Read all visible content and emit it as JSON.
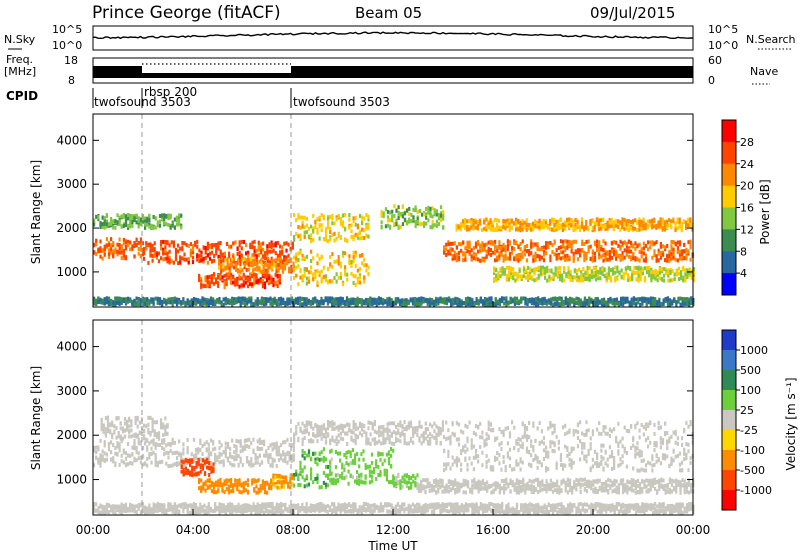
{
  "header": {
    "station": "Prince George (fitACF)",
    "beam": "Beam 05",
    "date": "09/Jul/2015"
  },
  "strips": {
    "nsky_label": "N.Sky",
    "nsky_ticks": [
      "10^5",
      "10^0"
    ],
    "nsearch_label": "N.Search",
    "nsearch_ticks": [
      "10^5",
      "10^0"
    ],
    "freq_label_1": "Freq.",
    "freq_label_2": "[MHz]",
    "freq_ticks": [
      "18",
      "8"
    ],
    "nave_label": "Nave",
    "nave_ticks": [
      "60",
      "0"
    ],
    "cpid_label": "CPID",
    "cpid_entries": [
      "twofsound 3503",
      "rbsp 200",
      "twofsound 3503"
    ],
    "cpid_times": [
      0.0,
      2.0,
      8.0
    ]
  },
  "colorbars": {
    "power": {
      "title": "Power [dB]",
      "labels": [
        "28",
        "24",
        "20",
        "16",
        "12",
        "8",
        "4"
      ],
      "colors": [
        "#ff0000",
        "#ff4400",
        "#ff8800",
        "#ffcc00",
        "#80c840",
        "#3c8c50",
        "#2868a0",
        "#0000ff"
      ]
    },
    "velocity": {
      "title": "Velocity [m s⁻¹]",
      "labels": [
        "1000",
        "500",
        "100",
        "25",
        "-25",
        "-100",
        "-500",
        "-1000"
      ],
      "colors": [
        "#1e3cc8",
        "#3c78c8",
        "#2e8b57",
        "#6cd03c",
        "#c8c8c0",
        "#ffd700",
        "#ff8c00",
        "#ff4500",
        "#ff0000"
      ]
    }
  },
  "chart_data": [
    {
      "type": "heatmap",
      "ylabel": "Slant Range [km]",
      "xlim": [
        "00:00",
        "24:00"
      ],
      "ylim": [
        200,
        4600
      ],
      "yticks": [
        "1000",
        "2000",
        "3000",
        "4000"
      ],
      "xticks": [
        "00:00",
        "04:00",
        "08:00",
        "12:00",
        "16:00",
        "20:00",
        "00:00"
      ],
      "colorbar": "Power [dB]",
      "bands": [
        {
          "t": [
            0.0,
            2.0
          ],
          "range": [
            1300,
            1750
          ],
          "value": 24
        },
        {
          "t": [
            0.0,
            3.5
          ],
          "range": [
            2000,
            2300
          ],
          "value": 12
        },
        {
          "t": [
            2.0,
            8.0
          ],
          "range": [
            1200,
            1700
          ],
          "value": 26
        },
        {
          "t": [
            4.2,
            7.5
          ],
          "range": [
            650,
            950
          ],
          "value": 26
        },
        {
          "t": [
            5.0,
            8.0
          ],
          "range": [
            1000,
            1300
          ],
          "value": 22
        },
        {
          "t": [
            8.0,
            11.0
          ],
          "range": [
            1700,
            2300
          ],
          "value": 18
        },
        {
          "t": [
            8.0,
            11.0
          ],
          "range": [
            700,
            1500
          ],
          "value": 18
        },
        {
          "t": [
            11.5,
            14.0
          ],
          "range": [
            2000,
            2500
          ],
          "value": 14
        },
        {
          "t": [
            14.0,
            24.0
          ],
          "range": [
            1250,
            1700
          ],
          "value": 24
        },
        {
          "t": [
            14.5,
            24.0
          ],
          "range": [
            1950,
            2200
          ],
          "value": 20
        },
        {
          "t": [
            16.0,
            24.0
          ],
          "range": [
            800,
            1100
          ],
          "value": 16
        },
        {
          "t": [
            0.0,
            24.0
          ],
          "range": [
            250,
            400
          ],
          "value": 8
        }
      ]
    },
    {
      "type": "heatmap",
      "ylabel": "Slant Range [km]",
      "xlabel": "Time UT",
      "xlim": [
        "00:00",
        "24:00"
      ],
      "ylim": [
        200,
        4600
      ],
      "yticks": [
        "1000",
        "2000",
        "3000",
        "4000"
      ],
      "xticks": [
        "00:00",
        "04:00",
        "08:00",
        "12:00",
        "16:00",
        "20:00",
        "00:00"
      ],
      "colorbar": "Velocity [m s⁻¹]",
      "bands": [
        {
          "t": [
            0.0,
            8.0
          ],
          "range": [
            1300,
            1900
          ],
          "value": 0
        },
        {
          "t": [
            0.3,
            3.0
          ],
          "range": [
            1900,
            2400
          ],
          "value": 0
        },
        {
          "t": [
            3.5,
            4.8
          ],
          "range": [
            1100,
            1450
          ],
          "value": -600
        },
        {
          "t": [
            4.2,
            7.0
          ],
          "range": [
            700,
            1000
          ],
          "value": -300
        },
        {
          "t": [
            7.0,
            8.0
          ],
          "range": [
            800,
            1100
          ],
          "value": -120
        },
        {
          "t": [
            8.0,
            9.5
          ],
          "range": [
            800,
            1700
          ],
          "value": 80
        },
        {
          "t": [
            9.5,
            12.0
          ],
          "range": [
            900,
            1700
          ],
          "value": 60
        },
        {
          "t": [
            12.0,
            13.0
          ],
          "range": [
            800,
            1100
          ],
          "value": 50
        },
        {
          "t": [
            8.0,
            14.0
          ],
          "range": [
            1800,
            2300
          ],
          "value": 0
        },
        {
          "t": [
            14.0,
            24.0
          ],
          "range": [
            1200,
            2300
          ],
          "value": 0
        },
        {
          "t": [
            13.0,
            24.0
          ],
          "range": [
            700,
            1000
          ],
          "value": 0
        },
        {
          "t": [
            0.0,
            24.0
          ],
          "range": [
            250,
            450
          ],
          "value": 0
        }
      ]
    }
  ]
}
